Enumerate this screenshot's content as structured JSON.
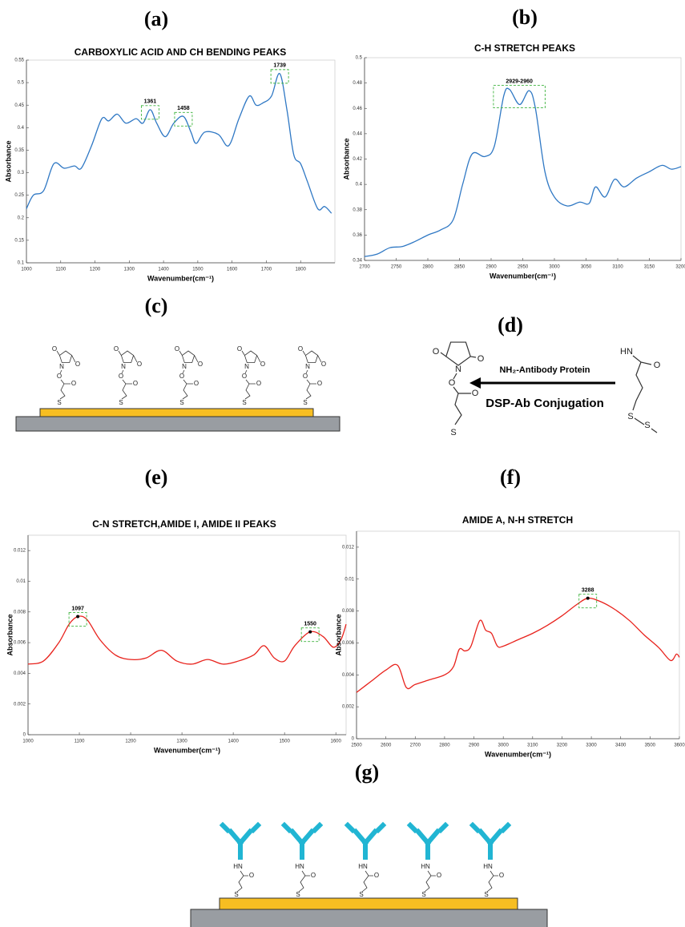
{
  "panels": {
    "a": "(a)",
    "b": "(b)",
    "c": "(c)",
    "d": "(d)",
    "e": "(e)",
    "f": "(f)",
    "g": "(g)"
  },
  "chart_data": [
    {
      "type": "line",
      "title": "CARBOXYLIC ACID AND CH BENDING PEAKS",
      "x_label": "Wavenumber(cm⁻¹)",
      "y_label": "Absorbance",
      "color": "#2f78c4",
      "x": [
        1000,
        1020,
        1050,
        1080,
        1110,
        1140,
        1160,
        1190,
        1220,
        1240,
        1265,
        1290,
        1320,
        1340,
        1361,
        1380,
        1405,
        1430,
        1458,
        1480,
        1495,
        1520,
        1560,
        1590,
        1620,
        1650,
        1670,
        1690,
        1715,
        1739,
        1760,
        1780,
        1800,
        1820,
        1850,
        1870,
        1890
      ],
      "values": [
        0.22,
        0.25,
        0.26,
        0.32,
        0.31,
        0.315,
        0.31,
        0.36,
        0.42,
        0.415,
        0.43,
        0.41,
        0.42,
        0.41,
        0.44,
        0.41,
        0.38,
        0.41,
        0.425,
        0.39,
        0.365,
        0.39,
        0.385,
        0.36,
        0.42,
        0.47,
        0.45,
        0.455,
        0.47,
        0.52,
        0.44,
        0.34,
        0.32,
        0.28,
        0.22,
        0.225,
        0.21
      ],
      "xlim": [
        1000,
        1900
      ],
      "xticks": [
        1000,
        1100,
        1200,
        1300,
        1400,
        1500,
        1600,
        1700,
        1800
      ],
      "ylim": [
        0.1,
        0.55
      ],
      "yticks": [
        0.1,
        0.15,
        0.2,
        0.25,
        0.3,
        0.35,
        0.4,
        0.45,
        0.5,
        0.55
      ],
      "annotations": [
        {
          "label": "1361",
          "x": 1361,
          "y": 0.44
        },
        {
          "label": "1458",
          "x": 1458,
          "y": 0.425
        },
        {
          "label": "1739",
          "x": 1739,
          "y": 0.52
        }
      ]
    },
    {
      "type": "line",
      "title": "C-H STRETCH PEAKS",
      "x_label": "Wavenumber(cm⁻¹)",
      "y_label": "Absorbance",
      "color": "#2f78c4",
      "x": [
        2700,
        2720,
        2740,
        2760,
        2780,
        2800,
        2820,
        2840,
        2855,
        2870,
        2890,
        2905,
        2920,
        2929,
        2945,
        2960,
        2970,
        2985,
        3000,
        3020,
        3040,
        3055,
        3065,
        3080,
        3095,
        3110,
        3130,
        3150,
        3170,
        3185,
        3200
      ],
      "values": [
        0.343,
        0.345,
        0.35,
        0.351,
        0.355,
        0.36,
        0.364,
        0.372,
        0.4,
        0.424,
        0.422,
        0.43,
        0.47,
        0.475,
        0.463,
        0.474,
        0.46,
        0.41,
        0.39,
        0.383,
        0.386,
        0.385,
        0.398,
        0.39,
        0.404,
        0.398,
        0.405,
        0.41,
        0.415,
        0.412,
        0.414
      ],
      "xlim": [
        2700,
        3200
      ],
      "xticks": [
        2700,
        2750,
        2800,
        2850,
        2900,
        2950,
        3000,
        3050,
        3100,
        3150,
        3200
      ],
      "ylim": [
        0.34,
        0.5
      ],
      "yticks": [
        0.34,
        0.36,
        0.38,
        0.4,
        0.42,
        0.44,
        0.46,
        0.48,
        0.5
      ],
      "annotations": [
        {
          "label": "2929-2960",
          "x": 2929,
          "x2": 2960,
          "y": 0.475
        }
      ]
    },
    {
      "type": "line",
      "title": "C-N STRETCH,AMIDE I, AMIDE II PEAKS",
      "x_label": "Wavenumber(cm⁻¹)",
      "y_label": "Absorbance",
      "color": "#e8221c",
      "peak_marker": true,
      "x": [
        1000,
        1030,
        1060,
        1080,
        1097,
        1115,
        1140,
        1170,
        1200,
        1230,
        1260,
        1290,
        1320,
        1350,
        1380,
        1410,
        1440,
        1460,
        1480,
        1500,
        1520,
        1550,
        1575,
        1595,
        1610,
        1620
      ],
      "values": [
        0.0046,
        0.0048,
        0.006,
        0.0072,
        0.0077,
        0.0075,
        0.0062,
        0.0052,
        0.0049,
        0.005,
        0.0055,
        0.0048,
        0.0046,
        0.0049,
        0.0046,
        0.0048,
        0.0052,
        0.0058,
        0.005,
        0.0048,
        0.0058,
        0.0067,
        0.0064,
        0.0057,
        0.0062,
        0.0072
      ],
      "xlim": [
        1000,
        1620
      ],
      "xticks": [
        1000,
        1100,
        1200,
        1300,
        1400,
        1500,
        1600
      ],
      "ylim": [
        0,
        0.013
      ],
      "yticks": [
        0,
        0.002,
        0.004,
        0.006,
        0.008,
        0.01,
        0.012
      ],
      "annotations": [
        {
          "label": "1097",
          "x": 1097,
          "y": 0.0077
        },
        {
          "label": "1550",
          "x": 1550,
          "y": 0.0067
        }
      ]
    },
    {
      "type": "line",
      "title": "AMIDE A, N-H STRETCH",
      "x_label": "Wavenumber(cm⁻¹)",
      "y_label": "Absorbance",
      "color": "#e8221c",
      "peak_marker": true,
      "x": [
        2500,
        2550,
        2600,
        2640,
        2670,
        2700,
        2750,
        2800,
        2830,
        2850,
        2870,
        2890,
        2920,
        2940,
        2960,
        2980,
        3000,
        3050,
        3100,
        3150,
        3200,
        3250,
        3288,
        3330,
        3380,
        3430,
        3480,
        3530,
        3570,
        3590,
        3600
      ],
      "values": [
        0.0029,
        0.0036,
        0.0043,
        0.0046,
        0.0032,
        0.0034,
        0.0037,
        0.004,
        0.0045,
        0.0056,
        0.0055,
        0.0058,
        0.0074,
        0.0068,
        0.0066,
        0.0058,
        0.0058,
        0.0062,
        0.0066,
        0.0071,
        0.0077,
        0.0084,
        0.0088,
        0.0086,
        0.0081,
        0.0074,
        0.0065,
        0.0057,
        0.0049,
        0.0053,
        0.0051
      ],
      "xlim": [
        2500,
        3600
      ],
      "xticks": [
        2500,
        2600,
        2700,
        2800,
        2900,
        3000,
        3100,
        3200,
        3300,
        3400,
        3500,
        3600
      ],
      "ylim": [
        0,
        0.013
      ],
      "yticks": [
        0,
        0.002,
        0.004,
        0.006,
        0.008,
        0.01,
        0.012
      ],
      "annotations": [
        {
          "label": "3288",
          "x": 3288,
          "y": 0.0088
        }
      ]
    }
  ],
  "diagrams": {
    "c": {
      "atoms": [
        "O",
        "O",
        "N",
        "O",
        "O",
        "S"
      ]
    },
    "d": {
      "reagent": "NH₂-Antibody Protein",
      "caption": "DSP-Ab Conjugation",
      "left_atoms": [
        "O",
        "O",
        "N",
        "O",
        "O",
        "S"
      ],
      "right_atoms": [
        "HN",
        "O",
        "S",
        "S"
      ]
    },
    "g": {
      "atoms": [
        "HN",
        "O",
        "S"
      ]
    }
  }
}
